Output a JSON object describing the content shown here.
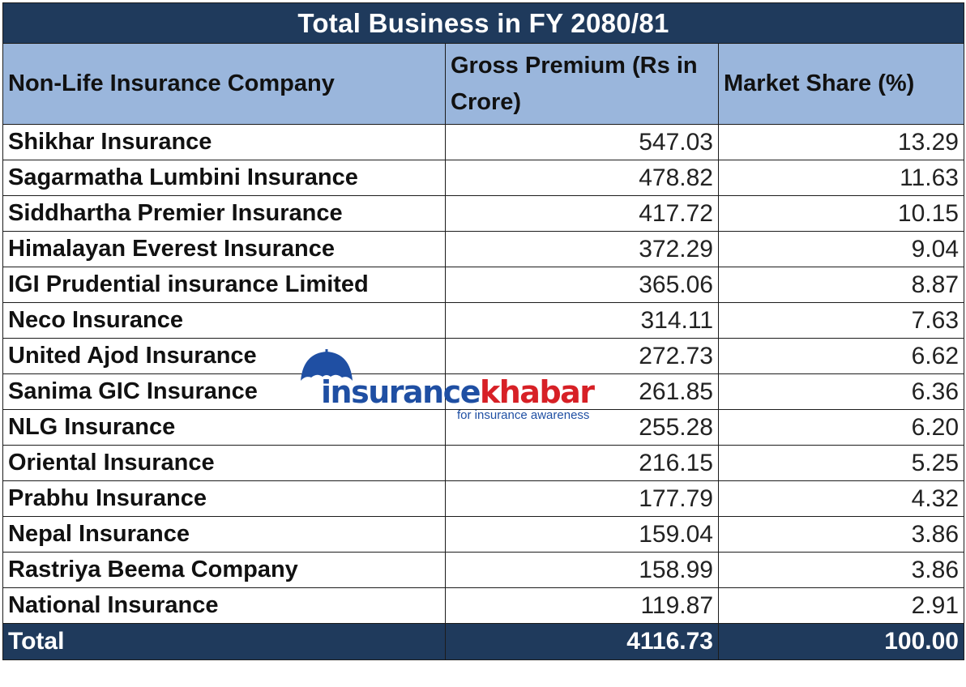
{
  "table": {
    "title": "Total Business in FY 2080/81",
    "headers": [
      "Non-Life Insurance Company",
      "Gross Premium (Rs in Crore)",
      "Market Share (%)"
    ],
    "rows": [
      {
        "company": "Shikhar Insurance",
        "premium": "547.03",
        "share": "13.29"
      },
      {
        "company": "Sagarmatha Lumbini Insurance",
        "premium": "478.82",
        "share": "11.63"
      },
      {
        "company": "Siddhartha Premier Insurance",
        "premium": "417.72",
        "share": "10.15"
      },
      {
        "company": "Himalayan Everest Insurance",
        "premium": "372.29",
        "share": "9.04"
      },
      {
        "company": "IGI Prudential insurance Limited",
        "premium": "365.06",
        "share": "8.87"
      },
      {
        "company": "Neco Insurance",
        "premium": "314.11",
        "share": "7.63"
      },
      {
        "company": "United Ajod Insurance",
        "premium": "272.73",
        "share": "6.62"
      },
      {
        "company": "Sanima GIC Insurance",
        "premium": "261.85",
        "share": "6.36"
      },
      {
        "company": "NLG Insurance",
        "premium": "255.28",
        "share": "6.20"
      },
      {
        "company": "Oriental Insurance",
        "premium": "216.15",
        "share": "5.25"
      },
      {
        "company": "Prabhu Insurance",
        "premium": "177.79",
        "share": "4.32"
      },
      {
        "company": "Nepal Insurance",
        "premium": "159.04",
        "share": "3.86"
      },
      {
        "company": "Rastriya Beema Company",
        "premium": "158.99",
        "share": "3.86"
      },
      {
        "company": "National Insurance",
        "premium": "119.87",
        "share": "2.91"
      }
    ],
    "total": {
      "label": "Total",
      "premium": "4116.73",
      "share": "100.00"
    }
  },
  "watermark": {
    "word_part1": "insurance",
    "word_part2": "khabar",
    "tagline": "for insurance awareness",
    "icon": "umbrella-icon",
    "colors": {
      "blue": "#1f4fa3",
      "red": "#d72026"
    }
  },
  "colors": {
    "title_bg": "#1f3a5c",
    "header_bg": "#9ab6dc",
    "total_bg": "#1f3a5c"
  }
}
